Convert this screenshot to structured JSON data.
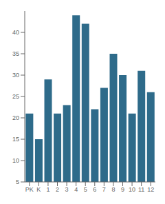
{
  "chart_data": {
    "type": "bar",
    "categories": [
      "PK",
      "K",
      "1",
      "2",
      "3",
      "4",
      "5",
      "6",
      "7",
      "8",
      "9",
      "10",
      "11",
      "12"
    ],
    "values": [
      21,
      15,
      29,
      21,
      23,
      44,
      42,
      22,
      27,
      35,
      30,
      21,
      31,
      26
    ],
    "color": "#2e6b8a",
    "ylim": [
      5,
      45
    ],
    "yticks": [
      5,
      10,
      15,
      20,
      25,
      30,
      35,
      40
    ],
    "grid": false
  }
}
